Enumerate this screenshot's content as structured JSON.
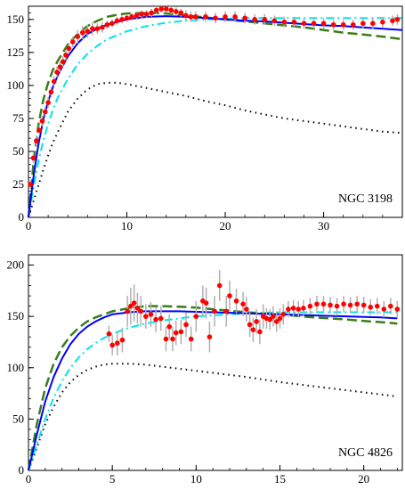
{
  "chart_data": [
    {
      "type": "scatter",
      "annotation": "NGC 3198",
      "xlim": [
        0,
        38
      ],
      "ylim": [
        0,
        160
      ],
      "x_ticks": [
        0,
        10,
        20,
        30
      ],
      "y_ticks": [
        0,
        25,
        50,
        75,
        100,
        125,
        150
      ],
      "x_tick_labels": [
        "0",
        "10",
        "20",
        "30"
      ],
      "y_tick_labels": [
        "0",
        "25",
        "50",
        "75",
        "100",
        "125",
        "150"
      ],
      "grid": false,
      "colors": {
        "observed": "#ff0000",
        "errorbar": "#b0b0b0",
        "solid": "#0000ff",
        "dashdot": "#00e5ee",
        "dashed": "#3a7d1a",
        "dotted": "#000000"
      },
      "observed": {
        "x": [
          0.2,
          0.5,
          0.8,
          1.1,
          1.4,
          1.7,
          2.0,
          2.3,
          2.6,
          2.9,
          3.2,
          3.5,
          3.8,
          4.1,
          4.5,
          5.0,
          5.5,
          6.0,
          6.5,
          7.0,
          7.5,
          8.0,
          8.5,
          9.0,
          9.5,
          10.0,
          10.5,
          11.0,
          11.5,
          12.0,
          12.5,
          13.0,
          13.5,
          14.0,
          14.5,
          15.0,
          15.5,
          16.0,
          16.5,
          17.0,
          18.0,
          19.0,
          20.0,
          21.0,
          22.0,
          23.0,
          24.0,
          25.0,
          26.0,
          27.0,
          28.0,
          29.0,
          30.0,
          31.0,
          32.0,
          33.0,
          34.0,
          35.0,
          36.0,
          37.0,
          37.5
        ],
        "y": [
          25,
          45,
          58,
          66,
          73,
          80,
          87,
          95,
          103,
          110,
          114,
          118,
          123,
          128,
          133,
          137,
          140,
          141,
          143,
          143,
          144,
          146,
          147,
          149,
          150,
          151,
          152,
          153,
          154,
          154,
          155,
          157,
          158,
          158,
          157,
          156,
          155,
          153,
          152,
          152,
          152,
          151,
          152,
          152,
          151,
          150,
          150,
          149,
          148,
          148,
          147,
          147,
          147,
          146,
          146,
          146,
          147,
          147,
          148,
          149,
          150
        ],
        "err": [
          3,
          4,
          4,
          4,
          4,
          4,
          4,
          4,
          4,
          4,
          4,
          4,
          4,
          4,
          4,
          5,
          5,
          5,
          5,
          4,
          4,
          3,
          3,
          3,
          3,
          3,
          3,
          3,
          3,
          3,
          3,
          3,
          3,
          3,
          3,
          3,
          3,
          4,
          4,
          4,
          4,
          4,
          4,
          4,
          4,
          4,
          4,
          4,
          4,
          4,
          4,
          4,
          4,
          4,
          4,
          4,
          4,
          4,
          4,
          4,
          4
        ]
      },
      "curves": {
        "x": [
          0,
          0.5,
          1,
          1.5,
          2,
          2.5,
          3,
          4,
          5,
          6,
          7,
          8,
          9,
          10,
          12,
          14,
          16,
          18,
          20,
          22,
          24,
          26,
          28,
          30,
          32,
          34,
          36,
          38
        ],
        "solid": [
          0,
          30,
          55,
          74,
          88,
          99,
          108,
          122,
          132,
          139,
          143,
          146,
          148,
          150,
          152,
          152.5,
          152,
          151,
          150,
          149,
          148.5,
          147.5,
          146.5,
          145.5,
          145,
          144,
          143,
          142
        ],
        "dashdot": [
          0,
          22,
          42,
          58,
          71,
          82,
          91,
          105,
          116,
          124,
          130,
          135,
          138,
          141,
          145,
          147.5,
          149,
          150,
          150.5,
          151,
          151,
          151,
          151,
          151,
          151,
          151,
          151,
          151
        ],
        "dashed": [
          0,
          40,
          70,
          89,
          102,
          112,
          119,
          131,
          139,
          145,
          149,
          152,
          153.5,
          154.5,
          155,
          154.5,
          153,
          151.5,
          150,
          148.5,
          147,
          145.5,
          144,
          142,
          140,
          138.5,
          137,
          135
        ],
        "dotted": [
          0,
          12,
          24,
          36,
          47,
          57,
          65,
          80,
          90,
          97,
          101,
          102,
          102,
          101,
          98,
          95,
          92,
          88,
          85,
          81,
          78,
          75,
          73,
          71,
          69,
          67,
          65,
          64
        ]
      }
    },
    {
      "type": "scatter",
      "annotation": "NGC 4826",
      "xlim": [
        0,
        22.3
      ],
      "ylim": [
        0,
        210
      ],
      "x_ticks": [
        0,
        5,
        10,
        15,
        20
      ],
      "y_ticks": [
        0,
        50,
        100,
        150,
        200
      ],
      "x_tick_labels": [
        "0",
        "5",
        "10",
        "15",
        "20"
      ],
      "y_tick_labels": [
        "0",
        "50",
        "100",
        "150",
        "200"
      ],
      "grid": false,
      "colors": {
        "observed": "#ff0000",
        "errorbar": "#b0b0b0",
        "solid": "#0000ff",
        "dashdot": "#00e5ee",
        "dashed": "#3a7d1a",
        "dotted": "#000000"
      },
      "observed": {
        "x": [
          4.8,
          5.0,
          5.3,
          5.6,
          5.9,
          6.1,
          6.3,
          6.5,
          6.7,
          7.0,
          7.3,
          7.6,
          7.9,
          8.2,
          8.4,
          8.6,
          8.8,
          9.1,
          9.4,
          9.7,
          10.0,
          10.4,
          10.6,
          10.8,
          11.1,
          11.4,
          11.8,
          12.0,
          12.4,
          12.8,
          13.0,
          13.2,
          13.4,
          13.6,
          13.8,
          14.0,
          14.2,
          14.4,
          14.6,
          14.8,
          15.0,
          15.2,
          15.5,
          15.8,
          16.1,
          16.4,
          16.8,
          17.2,
          17.6,
          18.0,
          18.4,
          18.8,
          19.2,
          19.6,
          20.0,
          20.4,
          20.8,
          21.2,
          21.6,
          22.0
        ],
        "y": [
          133,
          122,
          124,
          127,
          155,
          160,
          163,
          158,
          155,
          150,
          152,
          147,
          148,
          128,
          140,
          128,
          134,
          135,
          142,
          128,
          150,
          165,
          163,
          130,
          155,
          180,
          155,
          170,
          165,
          162,
          157,
          142,
          137,
          145,
          135,
          150,
          148,
          147,
          150,
          145,
          148,
          152,
          157,
          158,
          157,
          158,
          160,
          162,
          162,
          161,
          160,
          162,
          161,
          162,
          161,
          159,
          160,
          157,
          160,
          157
        ],
        "err": [
          8,
          10,
          12,
          12,
          15,
          18,
          18,
          15,
          15,
          12,
          12,
          12,
          12,
          12,
          12,
          12,
          12,
          12,
          12,
          12,
          15,
          15,
          15,
          15,
          15,
          15,
          15,
          15,
          12,
          12,
          12,
          12,
          12,
          12,
          12,
          12,
          10,
          10,
          10,
          10,
          10,
          10,
          8,
          8,
          8,
          8,
          8,
          8,
          8,
          8,
          8,
          8,
          8,
          8,
          8,
          8,
          8,
          8,
          8,
          8
        ]
      },
      "curves": {
        "x": [
          0,
          0.5,
          1,
          1.5,
          2,
          2.5,
          3,
          3.5,
          4,
          4.5,
          5,
          6,
          7,
          8,
          9,
          10,
          11,
          12,
          13,
          14,
          15,
          16,
          17,
          18,
          19,
          20,
          21,
          22
        ],
        "solid": [
          0,
          35,
          67,
          91,
          109,
          123,
          133,
          140,
          145,
          149,
          152,
          154,
          155,
          155,
          155,
          154.5,
          154,
          153.5,
          153,
          152.5,
          152,
          151.5,
          151,
          150.5,
          150,
          149.5,
          149,
          148
        ],
        "dashdot": [
          0,
          25,
          50,
          71,
          87,
          100,
          110,
          118,
          124,
          129,
          133,
          139,
          143,
          146,
          148,
          150,
          151,
          152,
          153,
          153.5,
          154,
          154,
          154,
          154,
          154,
          154,
          154,
          154
        ],
        "dashed": [
          0,
          45,
          80,
          104,
          120,
          131,
          139,
          145,
          149,
          152,
          155,
          158,
          160,
          160,
          159.5,
          158.5,
          157,
          155.5,
          154,
          153,
          152,
          150.5,
          149,
          148,
          147,
          145.5,
          144.5,
          143
        ],
        "dotted": [
          0,
          22,
          45,
          62,
          76,
          86,
          93,
          98,
          101,
          103,
          104,
          104,
          103,
          101,
          99,
          97,
          95,
          93,
          91,
          88.5,
          86,
          84,
          82,
          80,
          78,
          76,
          74,
          72
        ]
      }
    }
  ]
}
